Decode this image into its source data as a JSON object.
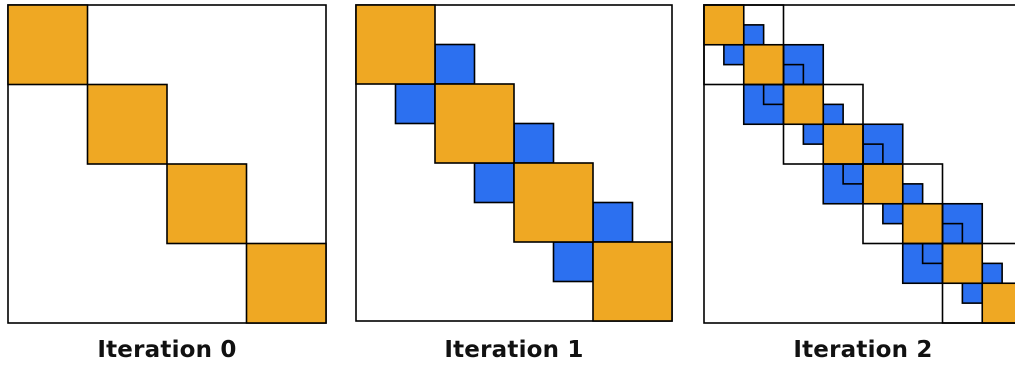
{
  "colors": {
    "block_fill": "#EFA823",
    "offdiag_fill": "#2C70F0",
    "stroke": "#000000",
    "background": "#FFFFFF"
  },
  "panels": [
    {
      "caption": "Iteration 0",
      "levels": 0
    },
    {
      "caption": "Iteration 1",
      "levels": 1
    },
    {
      "caption": "Iteration 2",
      "levels": 2
    }
  ]
}
